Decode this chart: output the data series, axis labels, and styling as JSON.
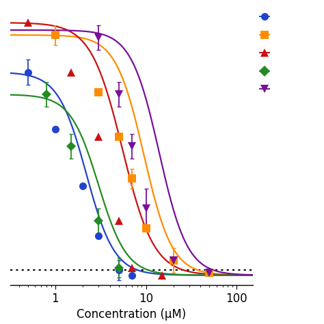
{
  "xlabel": "Concentration (μM)",
  "background_color": "#ffffff",
  "dotted_line_y": 3,
  "xlim": [
    0.32,
    150
  ],
  "ylim": [
    -3,
    108
  ],
  "series": [
    {
      "color": "#2244cc",
      "marker": "o",
      "ms": 8,
      "ic50": 2.2,
      "hill": 2.8,
      "top": 83,
      "bottom": 1,
      "x": [
        0.5,
        1.0,
        2.0,
        3.0,
        5.0,
        7.0
      ],
      "y": [
        83,
        60,
        37,
        17,
        3,
        1
      ],
      "ye": [
        5,
        0,
        0,
        0,
        4,
        0
      ]
    },
    {
      "color": "#ff8c00",
      "marker": "s",
      "ms": 8,
      "ic50": 9.5,
      "hill": 2.8,
      "top": 98,
      "bottom": 1,
      "x": [
        1.0,
        3.0,
        5.0,
        7.0,
        10.0,
        20.0,
        50.0
      ],
      "y": [
        98,
        75,
        57,
        40,
        20,
        7,
        2
      ],
      "ye": [
        4,
        0,
        0,
        4,
        0,
        5,
        0
      ]
    },
    {
      "color": "#cc1111",
      "marker": "^",
      "ms": 8,
      "ic50": 5.5,
      "hill": 2.5,
      "top": 103,
      "bottom": 1,
      "x": [
        0.5,
        1.5,
        3.0,
        5.0,
        7.0,
        15.0
      ],
      "y": [
        103,
        83,
        57,
        23,
        4,
        1
      ],
      "ye": [
        0,
        0,
        0,
        0,
        0,
        0
      ]
    },
    {
      "color": "#228b22",
      "marker": "D",
      "ms": 7,
      "ic50": 3.0,
      "hill": 2.8,
      "top": 74,
      "bottom": 1,
      "x": [
        0.8,
        1.5,
        3.0,
        5.0
      ],
      "y": [
        74,
        53,
        23,
        4
      ],
      "ye": [
        5,
        5,
        5,
        4
      ]
    },
    {
      "color": "#771199",
      "marker": "v",
      "ms": 8,
      "ic50": 14.0,
      "hill": 2.8,
      "top": 100,
      "bottom": 1,
      "x": [
        3.0,
        5.0,
        7.0,
        10.0,
        20.0,
        50.0
      ],
      "y": [
        97,
        74,
        53,
        28,
        7,
        2
      ],
      "ye": [
        5,
        5,
        5,
        8,
        0,
        0
      ]
    }
  ],
  "legend_colors": [
    "#2244cc",
    "#ff8c00",
    "#cc1111",
    "#228b22",
    "#771199"
  ],
  "legend_markers": [
    "o",
    "s",
    "^",
    "D",
    "v"
  ]
}
